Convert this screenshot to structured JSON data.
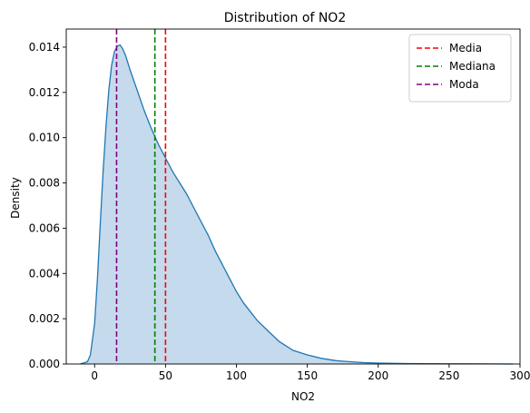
{
  "chart_data": {
    "type": "area",
    "title": "Distribution of NO2",
    "xlabel": "NO2",
    "ylabel": "Density",
    "xlim": [
      -20,
      300
    ],
    "ylim": [
      0,
      0.0148
    ],
    "x_ticks": [
      "0",
      "50",
      "100",
      "150",
      "200",
      "250",
      "300"
    ],
    "y_ticks": [
      "0.000",
      "0.002",
      "0.004",
      "0.006",
      "0.008",
      "0.010",
      "0.012",
      "0.014"
    ],
    "grid": false,
    "legend_position": "top-right",
    "series": [
      {
        "name": "",
        "color": "#1f77b4",
        "fill_color": "#c5daec",
        "x": [
          -10,
          -5,
          -3,
          0,
          2,
          4,
          6,
          8,
          10,
          12,
          14,
          16,
          18,
          20,
          22,
          25,
          30,
          35,
          40,
          45,
          50,
          55,
          60,
          65,
          70,
          75,
          80,
          85,
          90,
          95,
          100,
          105,
          110,
          115,
          120,
          125,
          130,
          135,
          140,
          145,
          150,
          160,
          170,
          180,
          190,
          200,
          220,
          250,
          280,
          295
        ],
        "y": [
          0,
          0.0001,
          0.0004,
          0.0018,
          0.0038,
          0.0062,
          0.0085,
          0.0105,
          0.0121,
          0.0132,
          0.0138,
          0.01405,
          0.0141,
          0.0139,
          0.0136,
          0.013,
          0.0121,
          0.0112,
          0.0104,
          0.0097,
          0.0091,
          0.0085,
          0.008,
          0.0075,
          0.0069,
          0.0063,
          0.0057,
          0.005,
          0.0044,
          0.0038,
          0.0032,
          0.0027,
          0.0023,
          0.0019,
          0.0016,
          0.0013,
          0.001,
          0.0008,
          0.0006,
          0.0005,
          0.0004,
          0.00025,
          0.00015,
          0.0001,
          6e-05,
          4e-05,
          2e-05,
          1e-05,
          5e-06,
          0
        ]
      }
    ],
    "reference_lines": [
      {
        "name": "Media",
        "x": 50,
        "color": "#ff0000"
      },
      {
        "name": "Mediana",
        "x": 42.5,
        "color": "#008000"
      },
      {
        "name": "Moda",
        "x": 15.5,
        "color": "#800080"
      }
    ]
  }
}
